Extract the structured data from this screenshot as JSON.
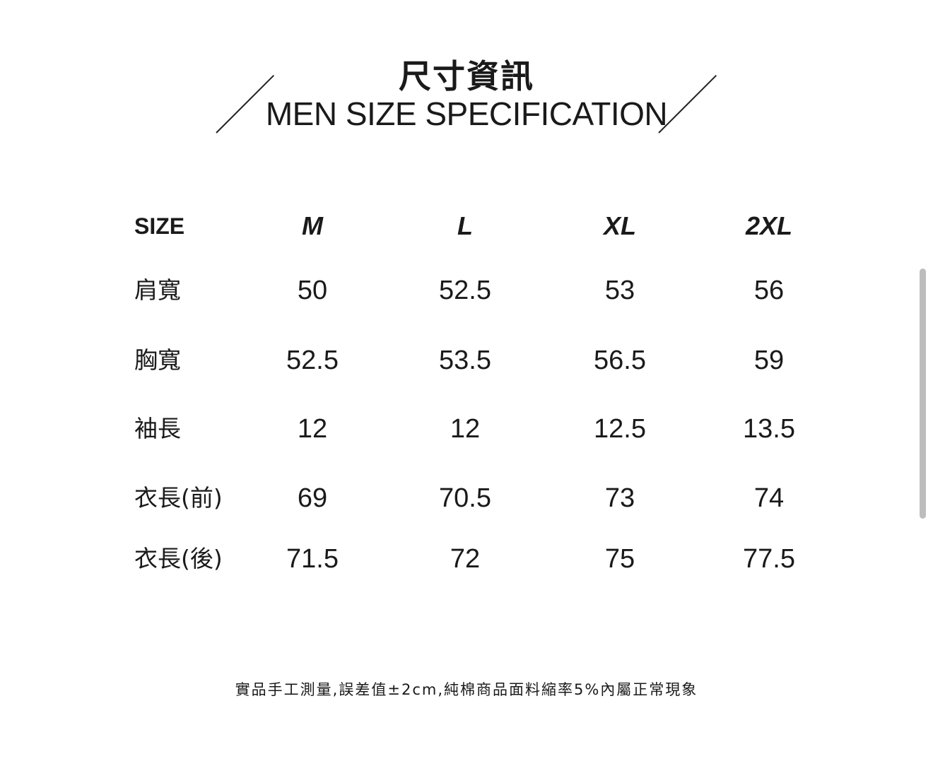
{
  "title": {
    "zh": "尺寸資訊",
    "en": "MEN SIZE SPECIFICATION"
  },
  "table": {
    "header_label": "SIZE",
    "sizes": [
      "M",
      "L",
      "XL",
      "2XL"
    ],
    "rows": [
      {
        "label": "肩寬",
        "values": [
          "50",
          "52.5",
          "53",
          "56"
        ]
      },
      {
        "label": "胸寬",
        "values": [
          "52.5",
          "53.5",
          "56.5",
          "59"
        ]
      },
      {
        "label": "袖長",
        "values": [
          "12",
          "12",
          "12.5",
          "13.5"
        ]
      },
      {
        "label": "衣長(前)",
        "values": [
          "69",
          "70.5",
          "73",
          "74"
        ]
      },
      {
        "label": "衣長(後)",
        "values": [
          "71.5",
          "72",
          "75",
          "77.5"
        ]
      }
    ]
  },
  "note": "實品手工測量,誤差值±2cm,純棉商品面料縮率5%內屬正常現象"
}
